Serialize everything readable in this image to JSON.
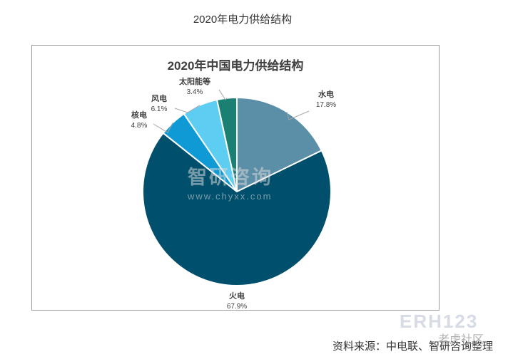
{
  "page": {
    "title": "2020年电力供给结构",
    "source": "资料来源：中电联、智研咨询整理"
  },
  "watermark": {
    "brand": "智研咨询",
    "url": "www.chyxx.com"
  },
  "corner_watermark": {
    "tag": "ERH123",
    "text": "老虎社区"
  },
  "chart_data": {
    "type": "pie",
    "title": "2020年中国电力供给结构",
    "slices": [
      {
        "name": "水电",
        "value": 17.8,
        "label": "17.8%",
        "color": "#5b8fa8"
      },
      {
        "name": "火电",
        "value": 67.9,
        "label": "67.9%",
        "color": "#00506d"
      },
      {
        "name": "核电",
        "value": 4.8,
        "label": "4.8%",
        "color": "#0f9ad6"
      },
      {
        "name": "风电",
        "value": 6.1,
        "label": "6.1%",
        "color": "#5ecdf2"
      },
      {
        "name": "太阳能等",
        "value": 3.4,
        "label": "3.4%",
        "color": "#1a8074"
      }
    ],
    "legend": "none",
    "start_angle_deg": 0,
    "direction": "clockwise"
  }
}
